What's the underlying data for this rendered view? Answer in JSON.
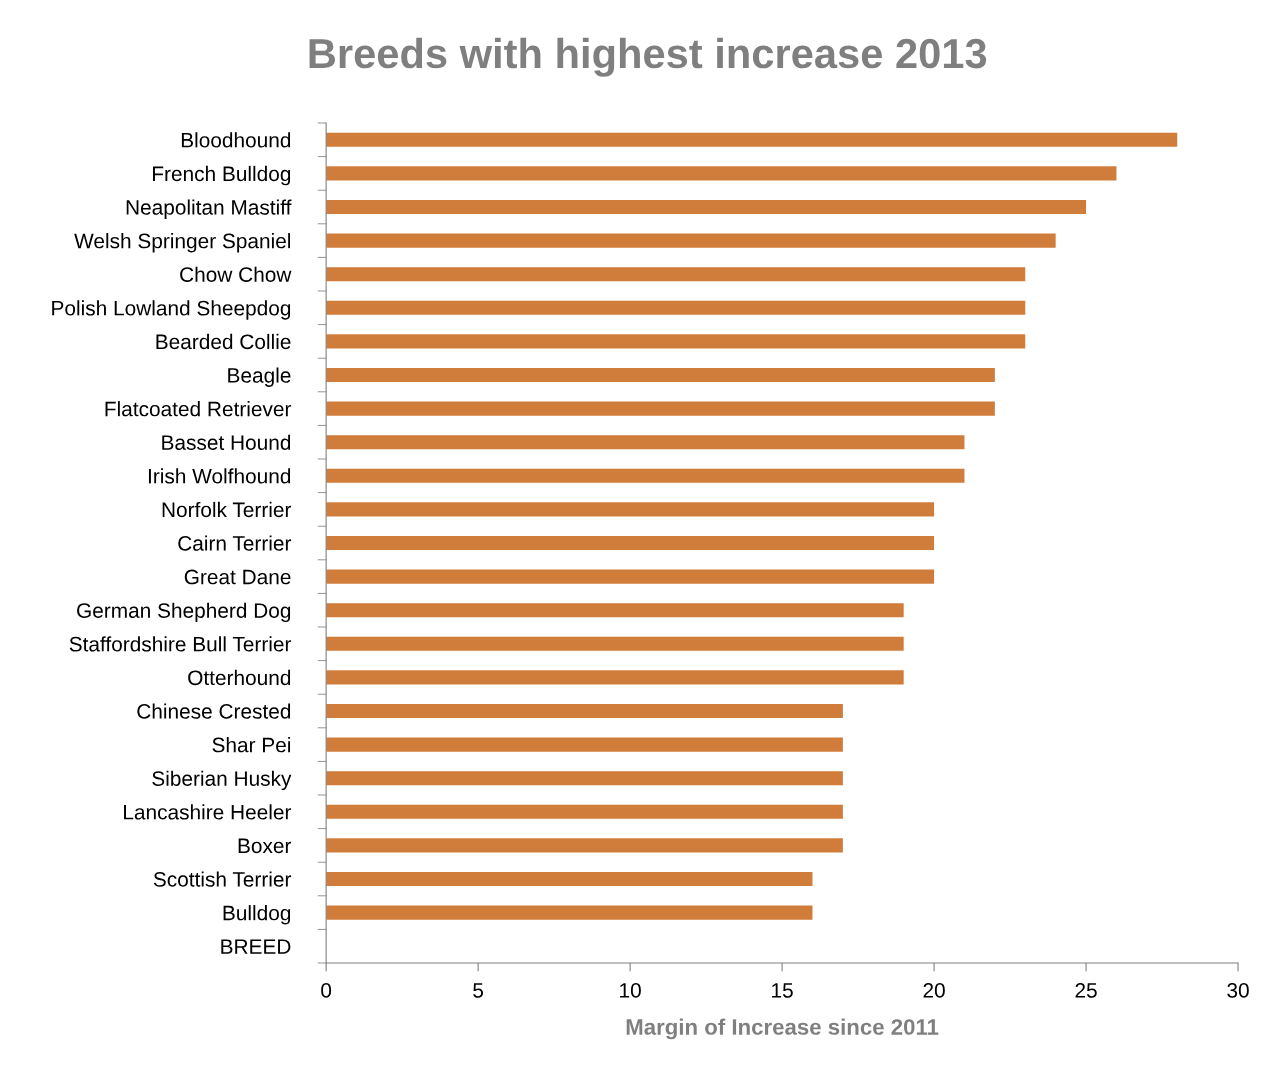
{
  "chart_data": {
    "type": "bar",
    "orientation": "horizontal",
    "title": "Breeds with highest increase 2013",
    "xlabel": "Margin of Increase since 2011",
    "categories": [
      "Bloodhound",
      "French Bulldog",
      "Neapolitan Mastiff",
      "Welsh Springer Spaniel",
      "Chow Chow",
      "Polish Lowland Sheepdog",
      "Bearded Collie",
      "Beagle",
      "Flatcoated Retriever",
      "Basset Hound",
      "Irish Wolfhound",
      "Norfolk Terrier",
      "Cairn Terrier",
      "Great Dane",
      "German Shepherd Dog",
      "Staffordshire Bull Terrier",
      "Otterhound",
      "Chinese Crested",
      "Shar Pei",
      "Siberian Husky",
      "Lancashire Heeler",
      "Boxer",
      "Scottish Terrier",
      "Bulldog",
      "BREED"
    ],
    "values": [
      28,
      26,
      25,
      24,
      23,
      23,
      23,
      22,
      22,
      21,
      21,
      20,
      20,
      20,
      19,
      19,
      19,
      17,
      17,
      17,
      17,
      17,
      16,
      16,
      null
    ],
    "color": "#d07c3a",
    "xlim": [
      0,
      30
    ],
    "xticks": [
      0,
      5,
      10,
      15,
      20,
      25,
      30
    ],
    "grid": false,
    "legend": false
  }
}
